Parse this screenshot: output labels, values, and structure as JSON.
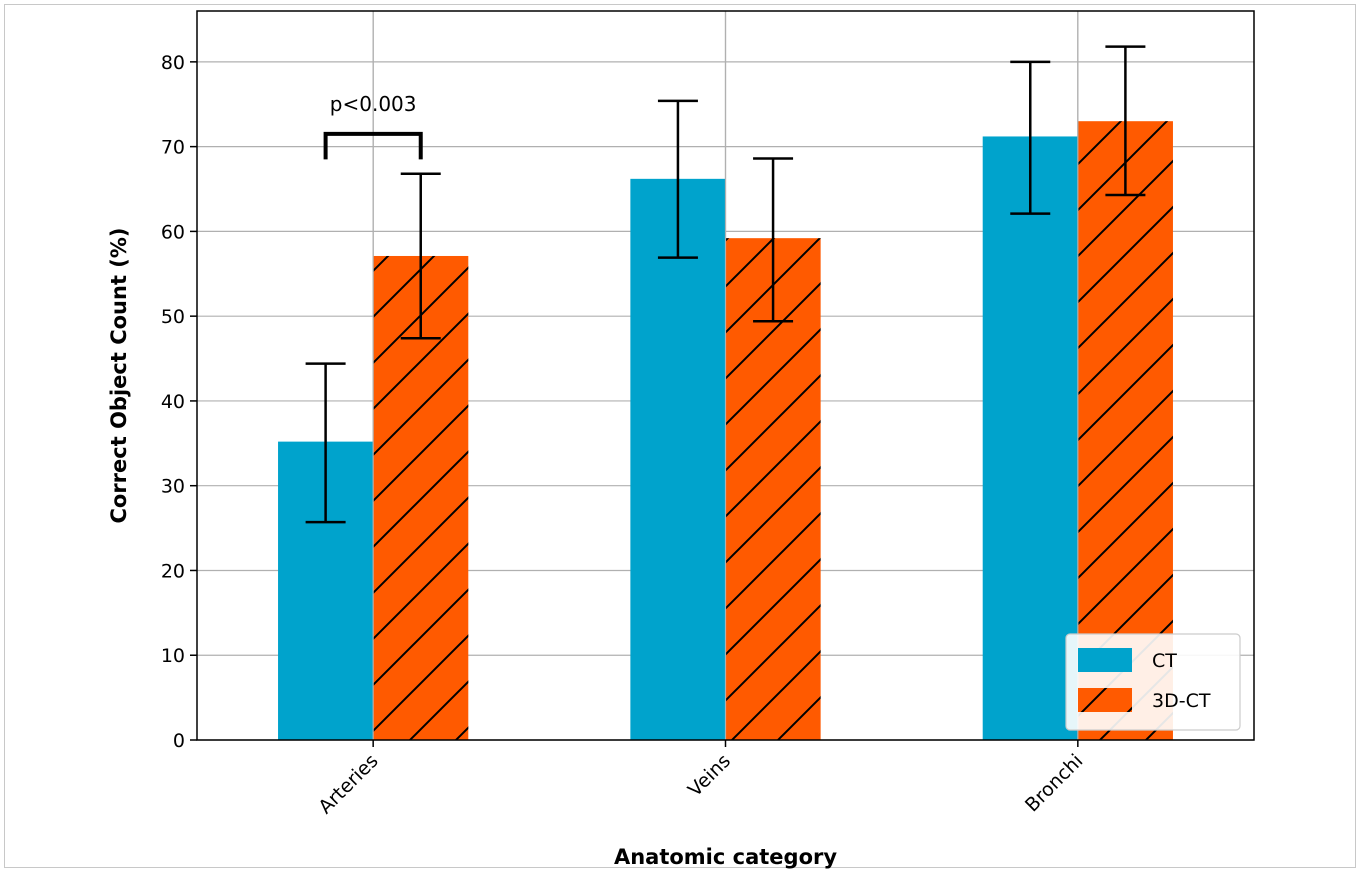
{
  "chart_data": {
    "type": "bar",
    "categories": [
      "Arteries",
      "Veins",
      "Bronchi"
    ],
    "series": [
      {
        "name": "CT",
        "values": [
          35.2,
          66.2,
          71.2
        ],
        "err_low": [
          25.7,
          56.9,
          62.1
        ],
        "err_high": [
          44.4,
          75.4,
          80.0
        ],
        "color": "#00a3cc",
        "hatch": false
      },
      {
        "name": "3D-CT",
        "values": [
          57.1,
          59.2,
          73.0
        ],
        "err_low": [
          47.4,
          49.4,
          64.3
        ],
        "err_high": [
          66.8,
          68.6,
          81.8
        ],
        "color": "#ff5a00",
        "hatch": true
      }
    ],
    "xlabel": "Anatomic category",
    "ylabel": "Correct Object Count (%)",
    "ylim": [
      0,
      86
    ],
    "yticks": [
      0,
      10,
      20,
      30,
      40,
      50,
      60,
      70,
      80
    ],
    "grid": true,
    "legend": "bottom-right",
    "annotation": {
      "text": "p<0.003",
      "category": "Arteries",
      "y_bracket": 71.5,
      "y_bracket_end": 68.5,
      "y_text": 75
    }
  }
}
